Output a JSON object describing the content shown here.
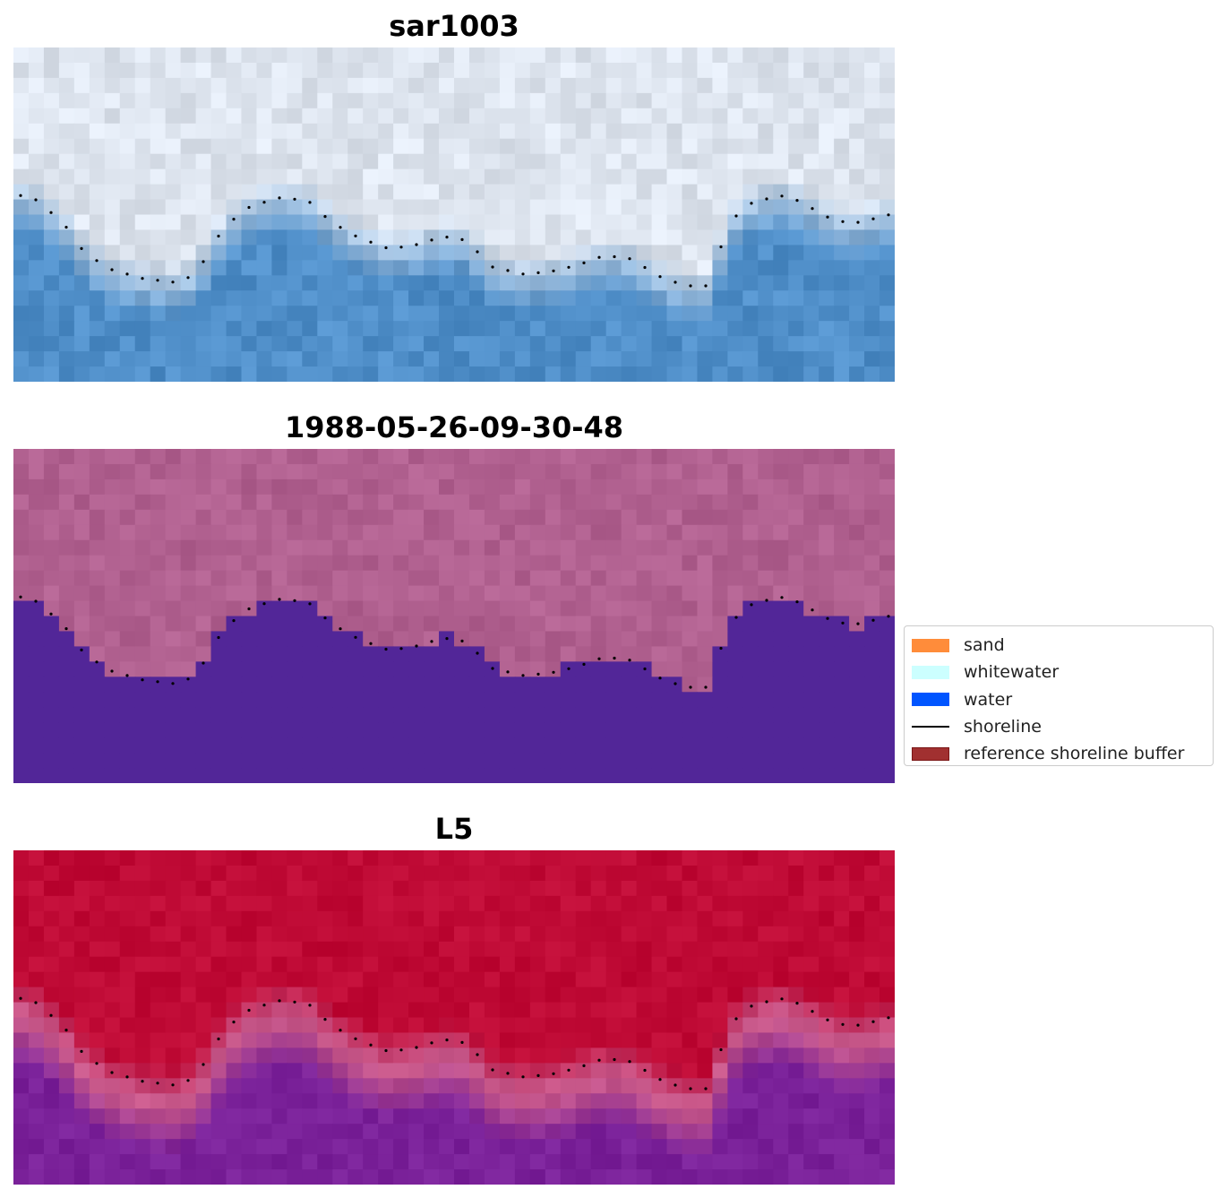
{
  "panels": [
    {
      "title": "sar1003",
      "style": "sar"
    },
    {
      "title": "1988-05-26-09-30-48",
      "style": "class"
    },
    {
      "title": "L5",
      "style": "ndwi"
    }
  ],
  "legend": {
    "items": [
      {
        "label": "sand",
        "color": "#ff8c3a",
        "type": "patch"
      },
      {
        "label": "whitewater",
        "color": "#ccffff",
        "type": "patch"
      },
      {
        "label": "water",
        "color": "#0055ff",
        "type": "patch"
      },
      {
        "label": "shoreline",
        "color": "#000000",
        "type": "line"
      },
      {
        "label": "reference shoreline buffer",
        "color": "#a13030",
        "type": "patch",
        "edge": "#7a1616"
      }
    ]
  },
  "colors": {
    "sar_land": "#dde4ee",
    "sar_water": "#4f8ec8",
    "class_land": "#b0608f",
    "class_water": "#522698",
    "ndwi_land": "#bf0a35",
    "ndwi_edge": "#c8588a",
    "ndwi_water": "#7a2199",
    "shoreline_dots": "#000000"
  }
}
